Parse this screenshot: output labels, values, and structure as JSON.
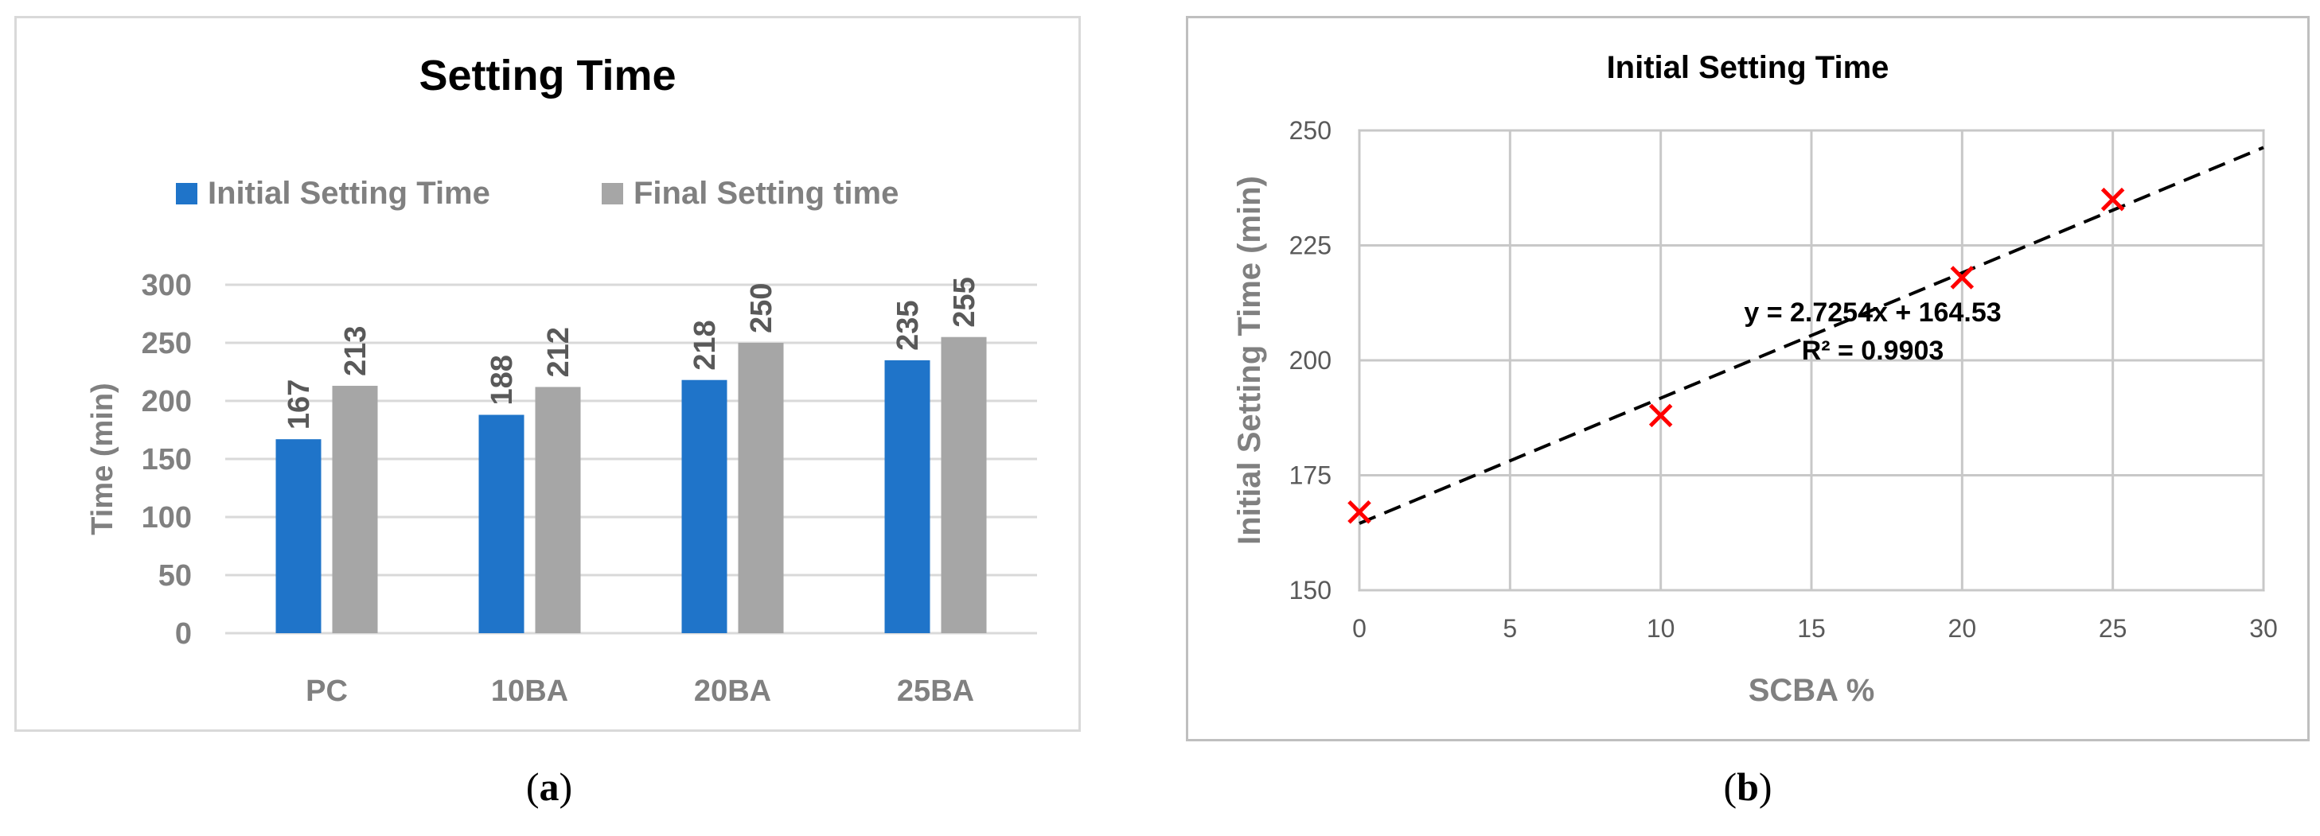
{
  "chart_data": [
    {
      "type": "bar",
      "title": "Setting Time",
      "xlabel": "",
      "ylabel": "Time (min)",
      "categories": [
        "PC",
        "10BA",
        "20BA",
        "25BA"
      ],
      "series": [
        {
          "name": "Initial Setting Time",
          "values": [
            167,
            188,
            218,
            235
          ],
          "color": "#1f74c9"
        },
        {
          "name": "Final Setting time",
          "values": [
            213,
            212,
            250,
            255
          ],
          "color": "#a6a6a6"
        }
      ],
      "ylim": [
        0,
        300
      ],
      "yticks": [
        "0",
        "50",
        "100",
        "150",
        "200",
        "250",
        "300"
      ],
      "grid": true,
      "legend": "top-center",
      "data_labels": true
    },
    {
      "type": "scatter",
      "title": "Initial Setting Time",
      "xlabel": "SCBA %",
      "ylabel": "Initial Setting Time (min)",
      "x": [
        0,
        10,
        20,
        25
      ],
      "y": [
        167,
        188,
        218,
        235
      ],
      "marker_color": "#ff0000",
      "xlim": [
        0,
        30
      ],
      "ylim": [
        150,
        250
      ],
      "xticks": [
        "0",
        "5",
        "10",
        "15",
        "20",
        "25",
        "30"
      ],
      "yticks": [
        "150",
        "175",
        "200",
        "225",
        "250"
      ],
      "grid": true,
      "trendline": {
        "slope": 2.7254,
        "intercept": 164.53,
        "style": "dashed"
      },
      "annotations": [
        "y = 2.7254x + 164.53",
        "R² = 0.9903"
      ]
    }
  ],
  "captions": {
    "a": "a",
    "b": "b"
  }
}
